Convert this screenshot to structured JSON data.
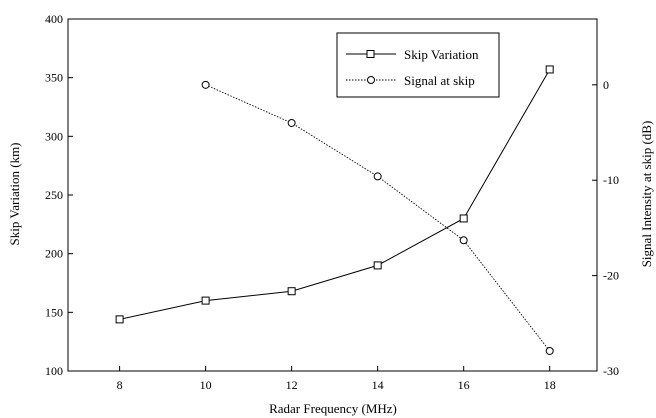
{
  "chart_data": {
    "type": "line",
    "title": "",
    "xlabel": "Radar Frequency (MHz)",
    "ylabel": "Skip Variation (km)",
    "y2label": "Signal Intensity at skip (dB)",
    "xlim": [
      6.8,
      19.1
    ],
    "ylim": [
      100,
      400
    ],
    "y2lim": [
      -30,
      6.9
    ],
    "xticks": [
      8,
      10,
      12,
      14,
      16,
      18
    ],
    "yticks": [
      100,
      150,
      200,
      250,
      300,
      350,
      400
    ],
    "y2ticks": [
      0,
      -10,
      -20,
      -30
    ],
    "grid": false,
    "legend_position": "top-right",
    "series": [
      {
        "name": "Skip Variation",
        "axis": "left",
        "marker": "square",
        "line_style": "solid",
        "x": [
          8,
          10,
          12,
          14,
          16,
          18
        ],
        "y": [
          144,
          160,
          168,
          190,
          230,
          357
        ]
      },
      {
        "name": "Signal at skip",
        "axis": "right",
        "marker": "circle",
        "line_style": "dotted",
        "x": [
          10,
          12,
          14,
          16,
          18
        ],
        "y": [
          0,
          -4,
          -9.6,
          -16.3,
          -27.9
        ]
      }
    ]
  }
}
